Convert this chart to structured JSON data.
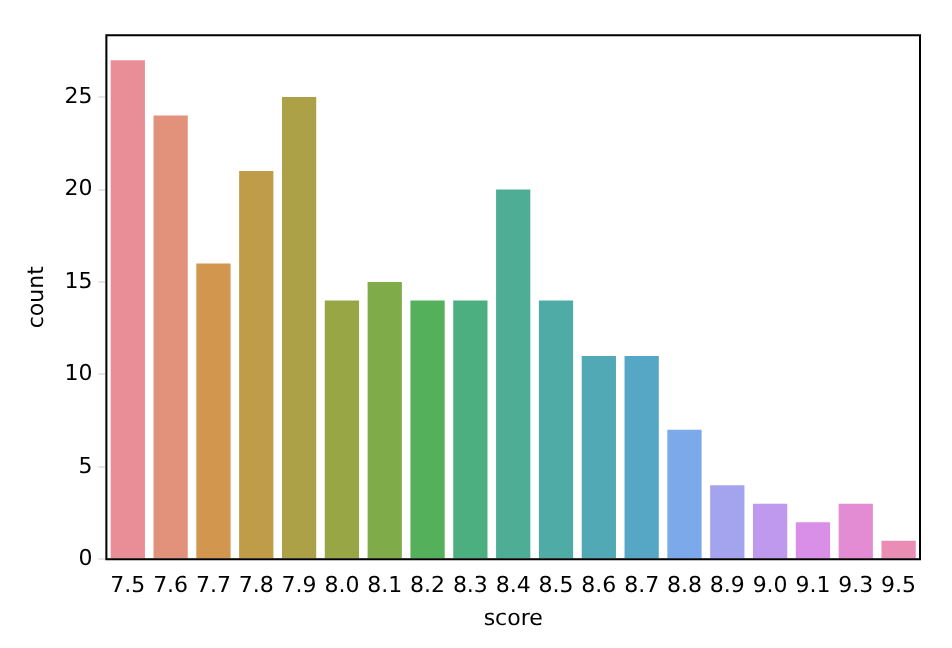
{
  "chart_data": {
    "type": "bar",
    "xlabel": "score",
    "ylabel": "count",
    "categories": [
      "7.5",
      "7.6",
      "7.7",
      "7.8",
      "7.9",
      "8.0",
      "8.1",
      "8.2",
      "8.3",
      "8.4",
      "8.5",
      "8.6",
      "8.7",
      "8.8",
      "8.9",
      "9.0",
      "9.1",
      "9.3",
      "9.5"
    ],
    "values": [
      27,
      24,
      16,
      21,
      25,
      14,
      15,
      14,
      14,
      20,
      14,
      11,
      11,
      7,
      4,
      3,
      2,
      3,
      1
    ],
    "colors": [
      "#e98e97",
      "#e2917a",
      "#d2964f",
      "#bf9c48",
      "#aca146",
      "#98a646",
      "#7fab48",
      "#54b05a",
      "#4caf80",
      "#4dad95",
      "#4faba6",
      "#51a9b5",
      "#56a6c6",
      "#7ca9e9",
      "#a4a3ee",
      "#bf99ee",
      "#d98ee8",
      "#e48cd3",
      "#e98db5"
    ],
    "ylim": [
      0,
      28.35
    ],
    "yticks": [
      0,
      5,
      10,
      15,
      20,
      25
    ],
    "grid": false
  }
}
